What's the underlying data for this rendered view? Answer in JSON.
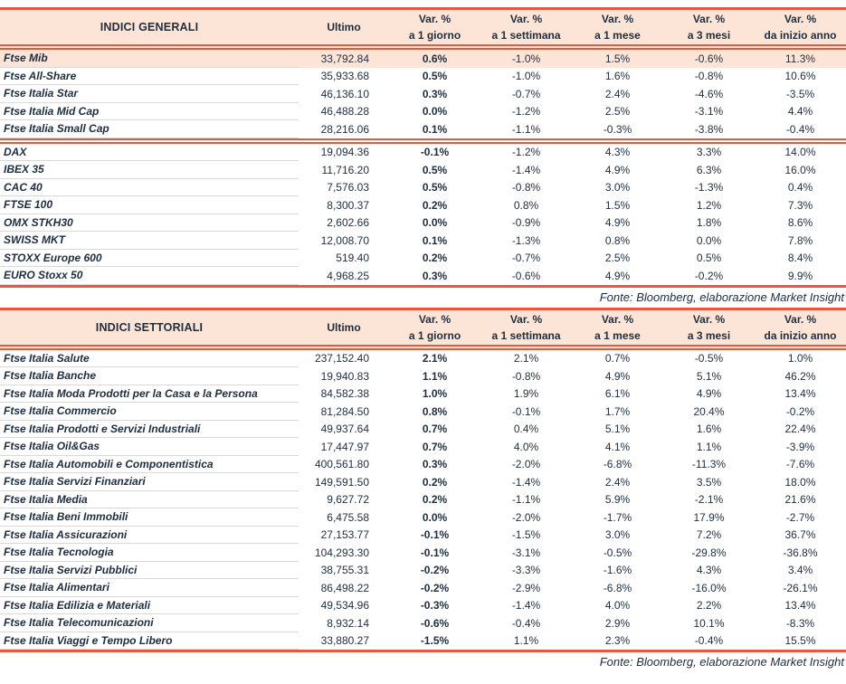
{
  "colors": {
    "accent": "#e8573f",
    "header_bg": "#fce5d6",
    "text": "#1e2d40",
    "row_divider": "#d9d9d9",
    "highlight_row_bg": "#fce5d6"
  },
  "columns": {
    "ultimo": {
      "label": "Ultimo"
    },
    "var_1g": {
      "line1": "Var. %",
      "line2": "a 1 giorno"
    },
    "var_1w": {
      "line1": "Var. %",
      "line2": "a 1 settimana"
    },
    "var_1m": {
      "line1": "Var. %",
      "line2": "a 1 mese"
    },
    "var_3m": {
      "line1": "Var. %",
      "line2": "a 3 mesi"
    },
    "var_ytd": {
      "line1": "Var. %",
      "line2": "da inizio anno"
    }
  },
  "tables": [
    {
      "title": "INDICI GENERALI",
      "source": "Fonte: Bloomberg, elaborazione Market Insight",
      "highlight_first_row": true,
      "separator_after_row": 5,
      "rows": [
        {
          "name": "Ftse Mib",
          "ultimo": "33,792.84",
          "var_1g": "0.6%",
          "var_1w": "-1.0%",
          "var_1m": "1.5%",
          "var_3m": "-0.6%",
          "var_ytd": "11.3%"
        },
        {
          "name": "Ftse All-Share",
          "ultimo": "35,933.68",
          "var_1g": "0.5%",
          "var_1w": "-1.0%",
          "var_1m": "1.6%",
          "var_3m": "-0.8%",
          "var_ytd": "10.6%"
        },
        {
          "name": "Ftse Italia Star",
          "ultimo": "46,136.10",
          "var_1g": "0.3%",
          "var_1w": "-0.7%",
          "var_1m": "2.4%",
          "var_3m": "-4.6%",
          "var_ytd": "-3.5%"
        },
        {
          "name": "Ftse Italia Mid Cap",
          "ultimo": "46,488.28",
          "var_1g": "0.0%",
          "var_1w": "-1.2%",
          "var_1m": "2.5%",
          "var_3m": "-3.1%",
          "var_ytd": "4.4%"
        },
        {
          "name": "Ftse Italia Small Cap",
          "ultimo": "28,216.06",
          "var_1g": "0.1%",
          "var_1w": "-1.1%",
          "var_1m": "-0.3%",
          "var_3m": "-3.8%",
          "var_ytd": "-0.4%"
        },
        {
          "name": "DAX",
          "ultimo": "19,094.36",
          "var_1g": "-0.1%",
          "var_1w": "-1.2%",
          "var_1m": "4.3%",
          "var_3m": "3.3%",
          "var_ytd": "14.0%"
        },
        {
          "name": "IBEX 35",
          "ultimo": "11,716.20",
          "var_1g": "0.5%",
          "var_1w": "-1.4%",
          "var_1m": "4.9%",
          "var_3m": "6.3%",
          "var_ytd": "16.0%"
        },
        {
          "name": "CAC 40",
          "ultimo": "7,576.03",
          "var_1g": "0.5%",
          "var_1w": "-0.8%",
          "var_1m": "3.0%",
          "var_3m": "-1.3%",
          "var_ytd": "0.4%"
        },
        {
          "name": "FTSE 100",
          "ultimo": "8,300.37",
          "var_1g": "0.2%",
          "var_1w": "0.8%",
          "var_1m": "1.5%",
          "var_3m": "1.2%",
          "var_ytd": "7.3%"
        },
        {
          "name": "OMX STKH30",
          "ultimo": "2,602.66",
          "var_1g": "0.0%",
          "var_1w": "-0.9%",
          "var_1m": "4.9%",
          "var_3m": "1.8%",
          "var_ytd": "8.6%"
        },
        {
          "name": "SWISS MKT",
          "ultimo": "12,008.70",
          "var_1g": "0.1%",
          "var_1w": "-1.3%",
          "var_1m": "0.8%",
          "var_3m": "0.0%",
          "var_ytd": "7.8%"
        },
        {
          "name": "STOXX Europe 600",
          "ultimo": "519.40",
          "var_1g": "0.2%",
          "var_1w": "-0.7%",
          "var_1m": "2.5%",
          "var_3m": "0.5%",
          "var_ytd": "8.4%"
        },
        {
          "name": "EURO Stoxx 50",
          "ultimo": "4,968.25",
          "var_1g": "0.3%",
          "var_1w": "-0.6%",
          "var_1m": "4.9%",
          "var_3m": "-0.2%",
          "var_ytd": "9.9%"
        }
      ]
    },
    {
      "title": "INDICI SETTORIALI",
      "source": "Fonte: Bloomberg, elaborazione Market Insight",
      "highlight_first_row": false,
      "separator_after_row": null,
      "rows": [
        {
          "name": "Ftse Italia Salute",
          "ultimo": "237,152.40",
          "var_1g": "2.1%",
          "var_1w": "2.1%",
          "var_1m": "0.7%",
          "var_3m": "-0.5%",
          "var_ytd": "1.0%"
        },
        {
          "name": "Ftse Italia Banche",
          "ultimo": "19,940.83",
          "var_1g": "1.1%",
          "var_1w": "-0.8%",
          "var_1m": "4.9%",
          "var_3m": "5.1%",
          "var_ytd": "46.2%"
        },
        {
          "name": "Ftse Italia Moda Prodotti per la Casa e la Persona",
          "ultimo": "84,582.38",
          "var_1g": "1.0%",
          "var_1w": "1.9%",
          "var_1m": "6.1%",
          "var_3m": "4.9%",
          "var_ytd": "13.4%"
        },
        {
          "name": "Ftse Italia Commercio",
          "ultimo": "81,284.50",
          "var_1g": "0.8%",
          "var_1w": "-0.1%",
          "var_1m": "1.7%",
          "var_3m": "20.4%",
          "var_ytd": "-0.2%"
        },
        {
          "name": "Ftse Italia Prodotti e Servizi Industriali",
          "ultimo": "49,937.64",
          "var_1g": "0.7%",
          "var_1w": "0.4%",
          "var_1m": "5.1%",
          "var_3m": "1.6%",
          "var_ytd": "22.4%"
        },
        {
          "name": "Ftse Italia Oil&Gas",
          "ultimo": "17,447.97",
          "var_1g": "0.7%",
          "var_1w": "4.0%",
          "var_1m": "4.1%",
          "var_3m": "1.1%",
          "var_ytd": "-3.9%"
        },
        {
          "name": "Ftse Italia Automobili e Componentistica",
          "ultimo": "400,561.80",
          "var_1g": "0.3%",
          "var_1w": "-2.0%",
          "var_1m": "-6.8%",
          "var_3m": "-11.3%",
          "var_ytd": "-7.6%"
        },
        {
          "name": "Ftse Italia Servizi Finanziari",
          "ultimo": "149,591.50",
          "var_1g": "0.2%",
          "var_1w": "-1.4%",
          "var_1m": "2.4%",
          "var_3m": "3.5%",
          "var_ytd": "18.0%"
        },
        {
          "name": "Ftse Italia Media",
          "ultimo": "9,627.72",
          "var_1g": "0.2%",
          "var_1w": "-1.1%",
          "var_1m": "5.9%",
          "var_3m": "-2.1%",
          "var_ytd": "21.6%"
        },
        {
          "name": "Ftse Italia Beni Immobili",
          "ultimo": "6,475.58",
          "var_1g": "0.0%",
          "var_1w": "-2.0%",
          "var_1m": "-1.7%",
          "var_3m": "17.9%",
          "var_ytd": "-2.7%"
        },
        {
          "name": "Ftse Italia Assicurazioni",
          "ultimo": "27,153.77",
          "var_1g": "-0.1%",
          "var_1w": "-1.5%",
          "var_1m": "3.0%",
          "var_3m": "7.2%",
          "var_ytd": "36.7%"
        },
        {
          "name": "Ftse Italia Tecnologia",
          "ultimo": "104,293.30",
          "var_1g": "-0.1%",
          "var_1w": "-3.1%",
          "var_1m": "-0.5%",
          "var_3m": "-29.8%",
          "var_ytd": "-36.8%"
        },
        {
          "name": "Ftse Italia Servizi Pubblici",
          "ultimo": "38,755.31",
          "var_1g": "-0.2%",
          "var_1w": "-3.3%",
          "var_1m": "-1.6%",
          "var_3m": "4.3%",
          "var_ytd": "3.4%"
        },
        {
          "name": "Ftse Italia Alimentari",
          "ultimo": "86,498.22",
          "var_1g": "-0.2%",
          "var_1w": "-2.9%",
          "var_1m": "-6.8%",
          "var_3m": "-16.0%",
          "var_ytd": "-26.1%"
        },
        {
          "name": "Ftse Italia Edilizia e Materiali",
          "ultimo": "49,534.96",
          "var_1g": "-0.3%",
          "var_1w": "-1.4%",
          "var_1m": "4.0%",
          "var_3m": "2.2%",
          "var_ytd": "13.4%"
        },
        {
          "name": "Ftse Italia Telecomunicazioni",
          "ultimo": "8,932.14",
          "var_1g": "-0.6%",
          "var_1w": "-0.4%",
          "var_1m": "2.9%",
          "var_3m": "10.1%",
          "var_ytd": "-8.3%"
        },
        {
          "name": "Ftse Italia Viaggi e Tempo Libero",
          "ultimo": "33,880.27",
          "var_1g": "-1.5%",
          "var_1w": "1.1%",
          "var_1m": "2.3%",
          "var_3m": "-0.4%",
          "var_ytd": "15.5%"
        }
      ]
    }
  ]
}
